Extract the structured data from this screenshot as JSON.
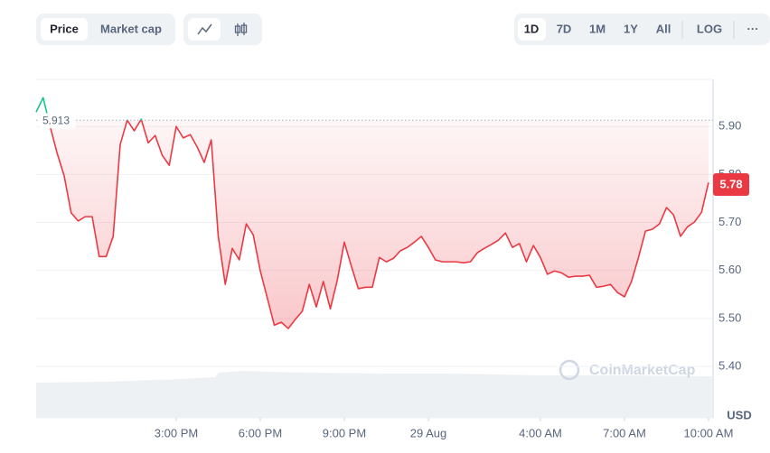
{
  "controls": {
    "series_tabs": [
      "Price",
      "Market cap"
    ],
    "ranges": [
      "1D",
      "7D",
      "1M",
      "1Y",
      "All",
      "LOG"
    ],
    "more": "···"
  },
  "chart_data": {
    "type": "line",
    "x": [
      0,
      0.25,
      0.5,
      0.75,
      1,
      1.25,
      1.5,
      1.75,
      2,
      2.25,
      2.5,
      2.75,
      3,
      3.25,
      3.5,
      3.75,
      4,
      4.25,
      4.5,
      4.75,
      5,
      5.25,
      5.5,
      5.75,
      6,
      6.25,
      6.5,
      6.75,
      7,
      7.25,
      7.5,
      7.75,
      8,
      8.25,
      8.5,
      8.75,
      9,
      9.25,
      9.5,
      9.75,
      10,
      10.25,
      10.5,
      10.75,
      11,
      11.25,
      11.5,
      11.75,
      12,
      12.25,
      12.5,
      12.75,
      13,
      13.25,
      13.5,
      13.75,
      14,
      14.25,
      14.5,
      14.75,
      15,
      15.25,
      15.5,
      15.75,
      16,
      16.25,
      16.5,
      16.75,
      17,
      17.25,
      17.5,
      17.75,
      18,
      18.25,
      18.5,
      18.75,
      19,
      19.25,
      19.5,
      19.75,
      20,
      20.25,
      20.5,
      20.75,
      21,
      21.25,
      21.5,
      21.75,
      22,
      22.25,
      22.5,
      22.75,
      23,
      23.25,
      23.5,
      23.75,
      24
    ],
    "values": [
      5.93,
      5.96,
      5.9,
      5.844,
      5.797,
      5.72,
      5.703,
      5.712,
      5.712,
      5.629,
      5.629,
      5.671,
      5.862,
      5.913,
      5.891,
      5.915,
      5.866,
      5.881,
      5.84,
      5.819,
      5.9,
      5.876,
      5.883,
      5.857,
      5.825,
      5.872,
      5.671,
      5.571,
      5.646,
      5.622,
      5.697,
      5.674,
      5.599,
      5.543,
      5.486,
      5.492,
      5.479,
      5.498,
      5.515,
      5.571,
      5.524,
      5.577,
      5.52,
      5.58,
      5.659,
      5.609,
      5.562,
      5.565,
      5.565,
      5.627,
      5.618,
      5.625,
      5.641,
      5.648,
      5.659,
      5.671,
      5.648,
      5.622,
      5.618,
      5.618,
      5.618,
      5.616,
      5.618,
      5.637,
      5.646,
      5.654,
      5.663,
      5.678,
      5.648,
      5.656,
      5.618,
      5.652,
      5.627,
      5.592,
      5.599,
      5.595,
      5.586,
      5.588,
      5.588,
      5.59,
      5.565,
      5.567,
      5.571,
      5.554,
      5.545,
      5.577,
      5.627,
      5.682,
      5.686,
      5.697,
      5.731,
      5.716,
      5.671,
      5.691,
      5.701,
      5.721,
      5.783
    ],
    "color": "#ea3943",
    "color_above_reference": "#16c784",
    "xlim": [
      0,
      24.13
    ],
    "xticks": [
      {
        "value": 5,
        "label": "3:00 PM"
      },
      {
        "value": 8,
        "label": "6:00 PM"
      },
      {
        "value": 11,
        "label": "9:00 PM"
      },
      {
        "value": 14,
        "label": "29 Aug"
      },
      {
        "value": 18,
        "label": "4:00 AM"
      },
      {
        "value": 21,
        "label": "7:00 AM"
      },
      {
        "value": 24,
        "label": "10:00 AM"
      }
    ],
    "ylim": [
      5.293,
      5.998
    ],
    "yticks": [
      {
        "value": 5.4,
        "label": "5.40"
      },
      {
        "value": 5.5,
        "label": "5.50"
      },
      {
        "value": 5.6,
        "label": "5.60"
      },
      {
        "value": 5.7,
        "label": "5.70"
      },
      {
        "value": 5.8,
        "label": "5.80"
      },
      {
        "value": 5.9,
        "label": "5.90"
      }
    ],
    "reference_price": 5.913,
    "current_price": 5.78,
    "currency": "USD",
    "watermark": "CoinMarketCap",
    "grid": true
  }
}
